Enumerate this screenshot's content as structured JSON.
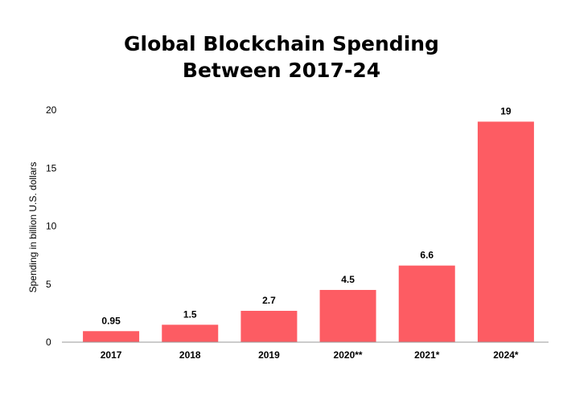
{
  "chart_data": {
    "type": "bar",
    "title_lines": [
      "Global Blockchain Spending",
      "Between 2017-24"
    ],
    "title": "Global Blockchain Spending Between 2017-24",
    "xlabel": "",
    "ylabel": "Spending in billion U.S. dollars",
    "categories": [
      "2017",
      "2018",
      "2019",
      "2020**",
      "2021*",
      "2024*"
    ],
    "values": [
      0.95,
      1.5,
      2.7,
      4.5,
      6.6,
      19
    ],
    "value_labels": [
      "0.95",
      "1.5",
      "2.7",
      "4.5",
      "6.6",
      "19"
    ],
    "yticks": [
      "0",
      "5",
      "10",
      "15",
      "20"
    ],
    "ylim": [
      0,
      20
    ],
    "grid": false,
    "bar_color": "#fd5c63",
    "axis_color": "#999999"
  }
}
